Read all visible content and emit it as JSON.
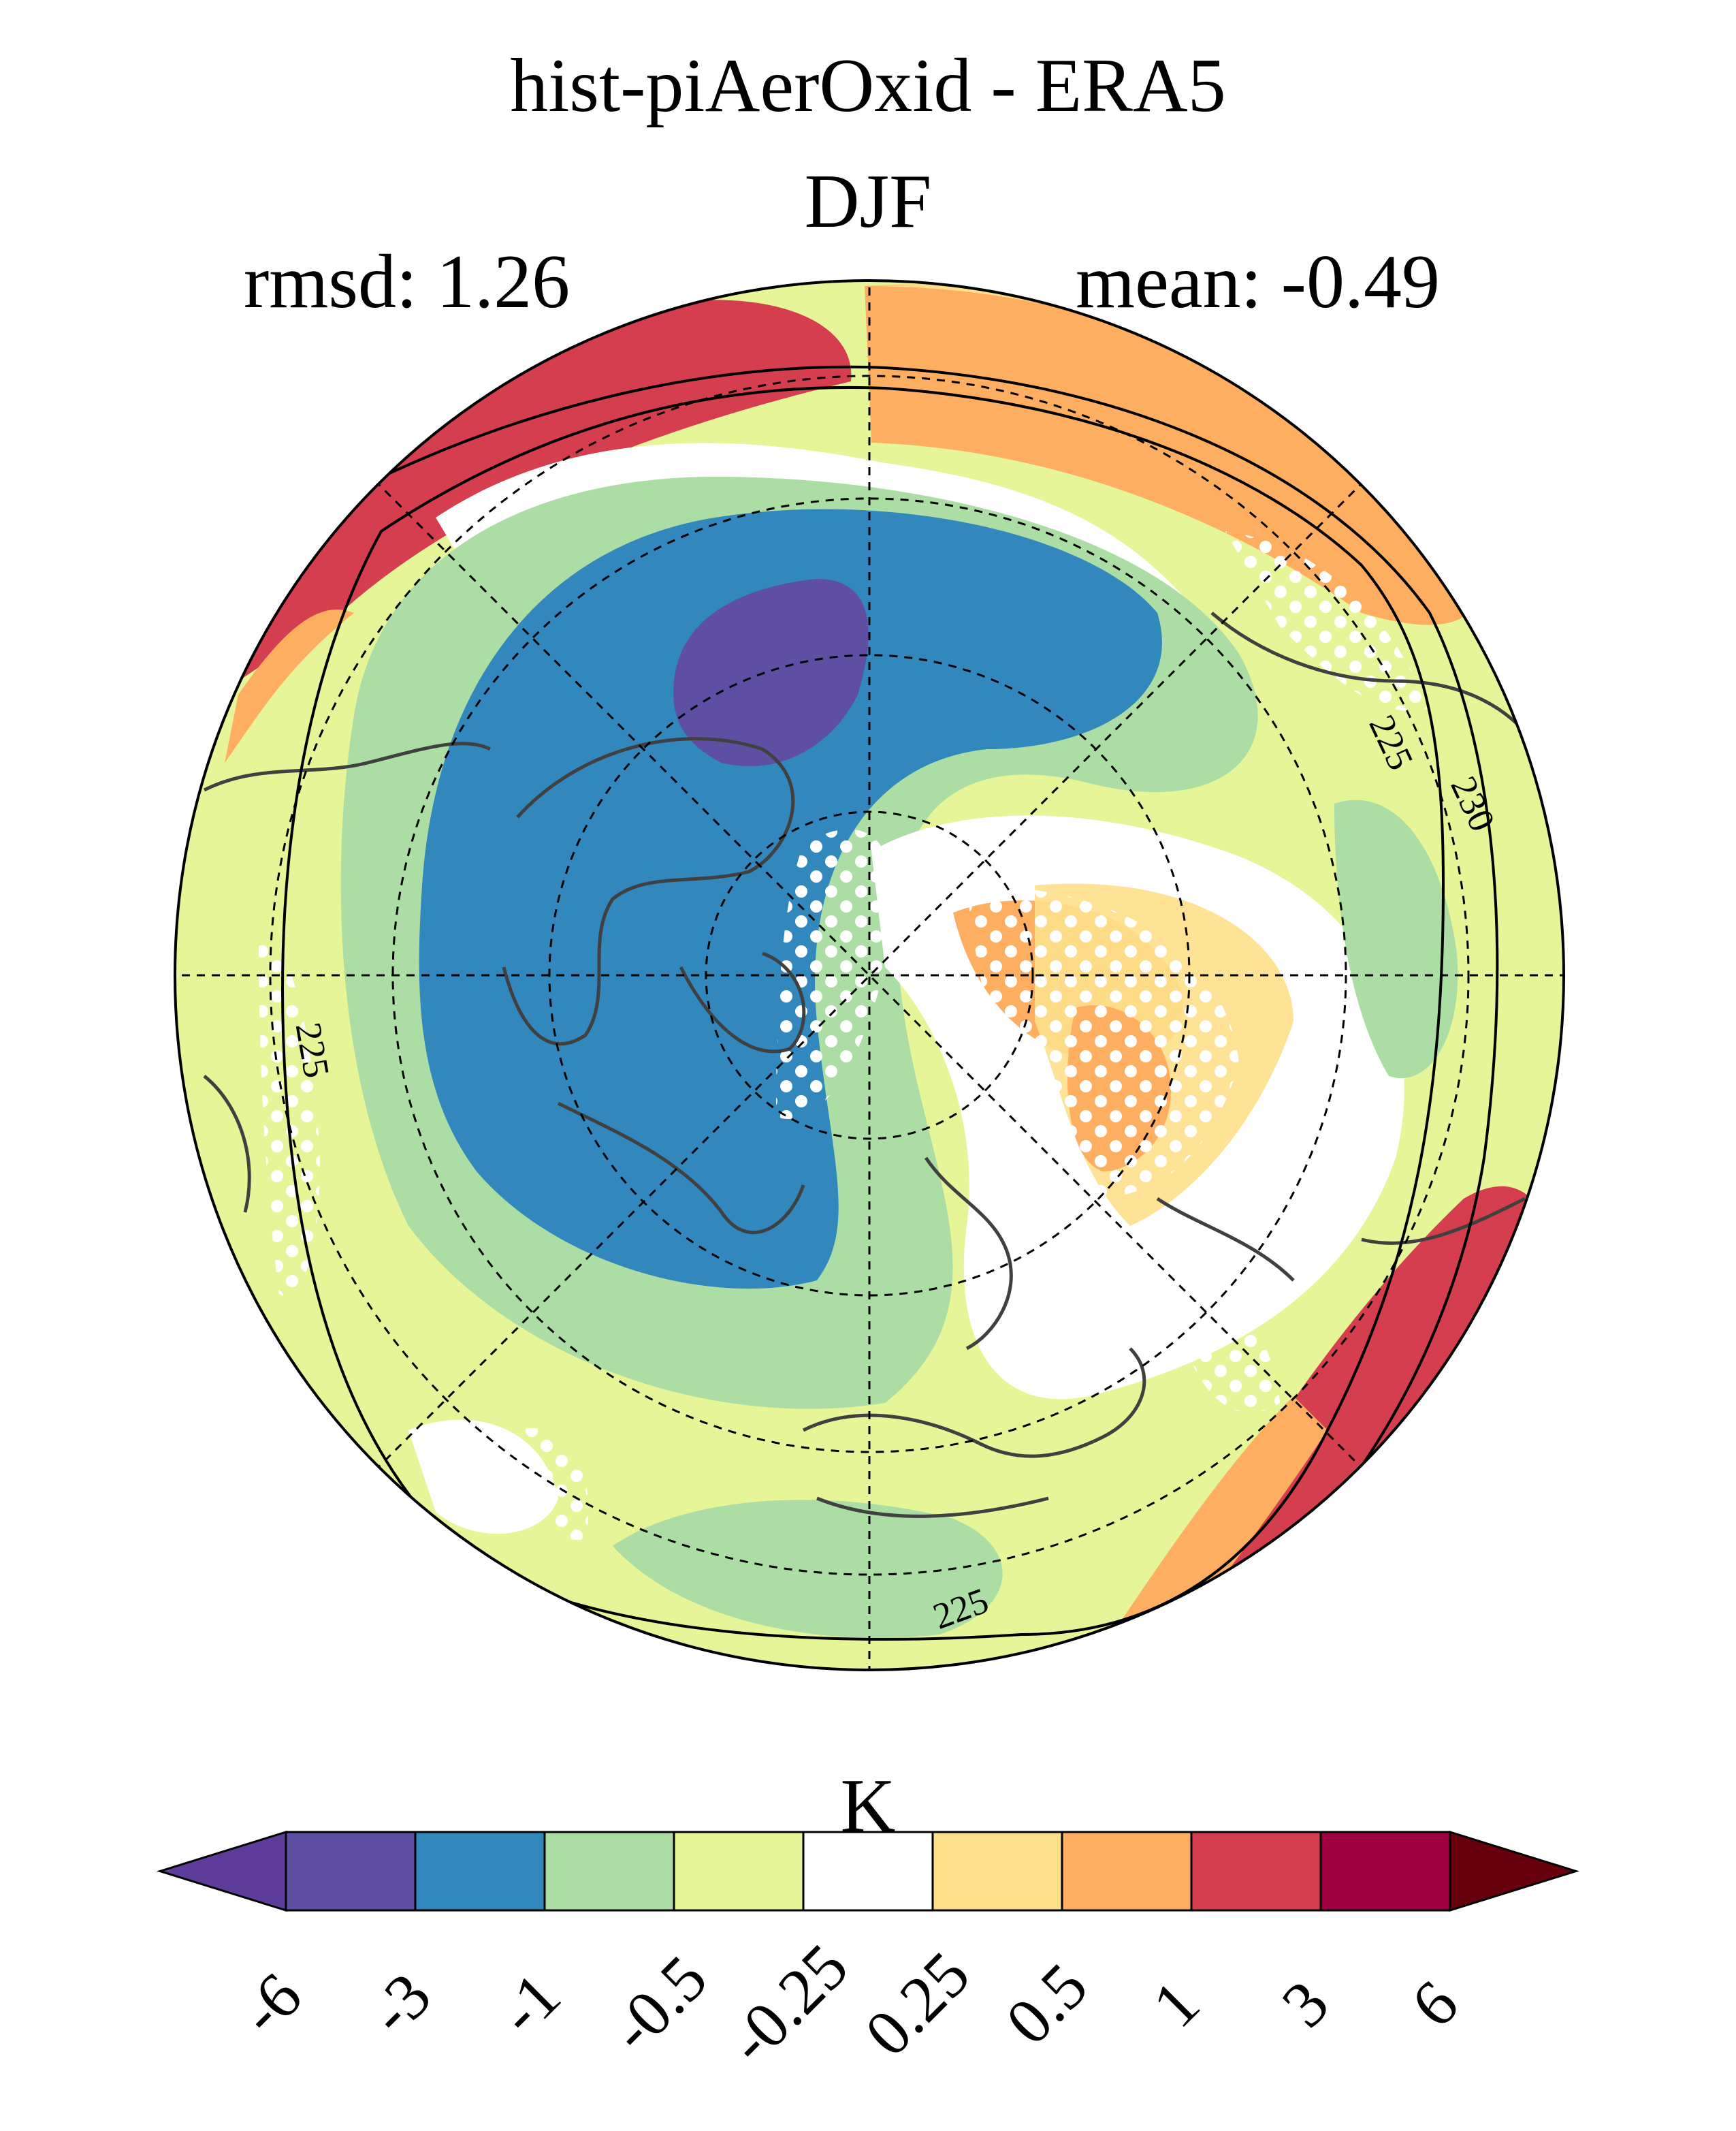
{
  "figure": {
    "title": "hist-piAerOxid - ERA5",
    "subtitle": "DJF",
    "rmsd_text": "rmsd: 1.26",
    "mean_text": "mean: -0.49"
  },
  "map": {
    "projection": "north polar stereographic",
    "gridlines": "dashed",
    "contour_labels": [
      "225",
      "225",
      "225",
      "230"
    ]
  },
  "colorbar": {
    "unit": "K",
    "levels": [
      "-6",
      "-3",
      "-1",
      "-0.5",
      "-0.25",
      "0.25",
      "0.5",
      "1",
      "3",
      "6"
    ],
    "colors": [
      "#5e3c99",
      "#5e4fa2",
      "#3288bd",
      "#abdda4",
      "#e6f598",
      "#ffffff",
      "#fee08b",
      "#fdae61",
      "#d53e4f",
      "#9e0142",
      "#67000d"
    ]
  }
}
